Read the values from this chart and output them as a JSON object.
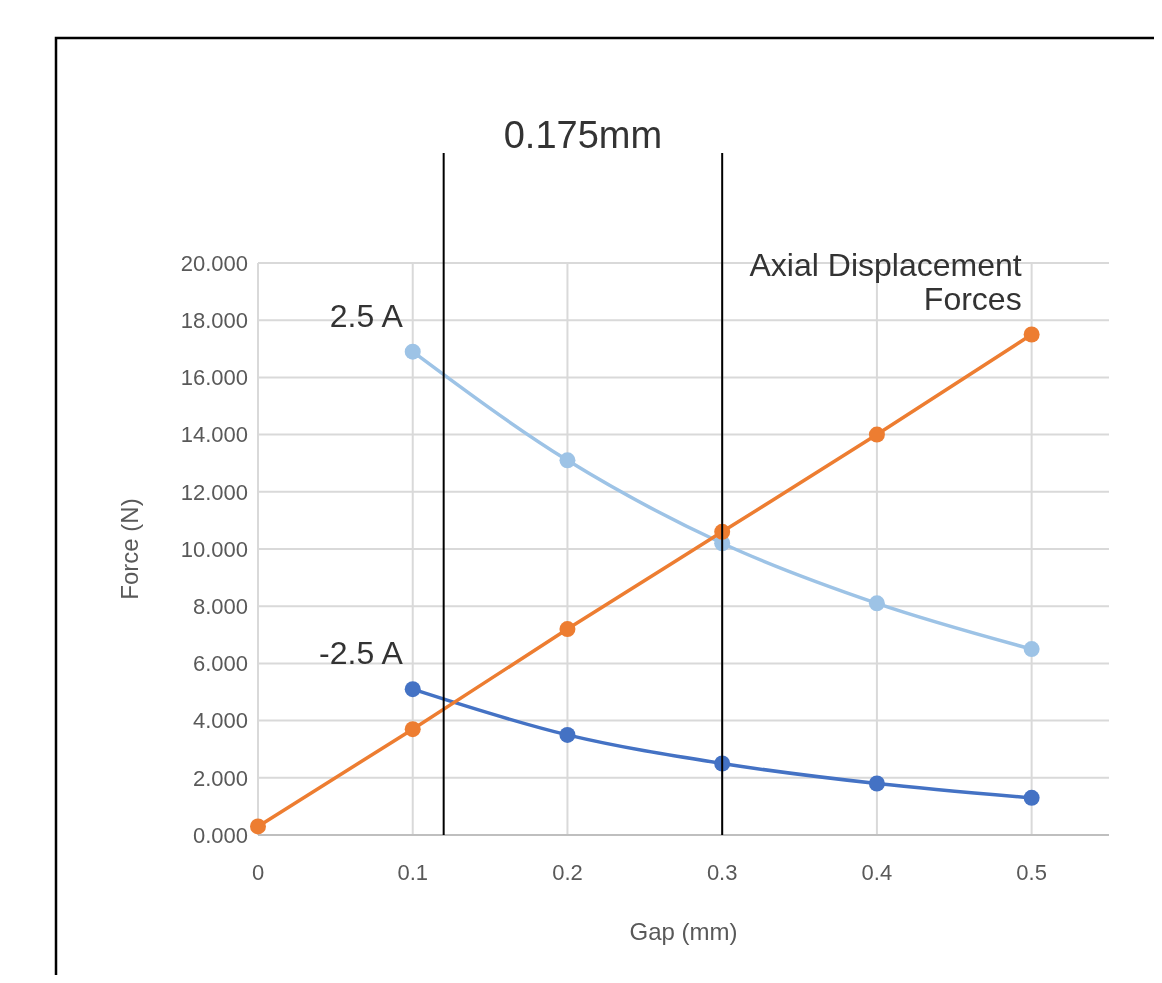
{
  "chart_data": {
    "type": "line",
    "xlabel": "Gap (mm)",
    "ylabel": "Force (N)",
    "xlim": [
      0,
      0.55
    ],
    "xticks": [
      0,
      0.1,
      0.2,
      0.3,
      0.4,
      0.5
    ],
    "ylim": [
      0,
      20
    ],
    "yticks": [
      {
        "value": 0,
        "label": "0.000"
      },
      {
        "value": 2,
        "label": "2.000"
      },
      {
        "value": 4,
        "label": "4.000"
      },
      {
        "value": 6,
        "label": "6.000"
      },
      {
        "value": 8,
        "label": "8.000"
      },
      {
        "value": 10,
        "label": "10.000"
      },
      {
        "value": 12,
        "label": "12.000"
      },
      {
        "value": 14,
        "label": "14.000"
      },
      {
        "value": 16,
        "label": "16.000"
      },
      {
        "value": 18,
        "label": "18.000"
      },
      {
        "value": 20,
        "label": "20.000"
      }
    ],
    "grid": true,
    "marker": "circle",
    "series": [
      {
        "name": "2.5 A",
        "color": "#9dc3e6",
        "x": [
          0.1,
          0.2,
          0.3,
          0.4,
          0.5
        ],
        "values": [
          16.9,
          13.1,
          10.2,
          8.1,
          6.5
        ]
      },
      {
        "name": "-2.5 A",
        "color": "#4472c4",
        "x": [
          0.1,
          0.2,
          0.3,
          0.4,
          0.5
        ],
        "values": [
          5.1,
          3.5,
          2.5,
          1.8,
          1.3
        ]
      },
      {
        "name": "Axial Displacement Forces",
        "color": "#ed7d31",
        "x": [
          0,
          0.1,
          0.2,
          0.3,
          0.4,
          0.5
        ],
        "values": [
          0.3,
          3.7,
          7.2,
          10.6,
          14.0,
          17.5
        ]
      }
    ],
    "ref_lines": [
      {
        "axis": "x",
        "value": 0.12,
        "color": "#000000"
      },
      {
        "axis": "x",
        "value": 0.3,
        "color": "#000000"
      }
    ],
    "annotations": [
      "0.175mm"
    ]
  }
}
